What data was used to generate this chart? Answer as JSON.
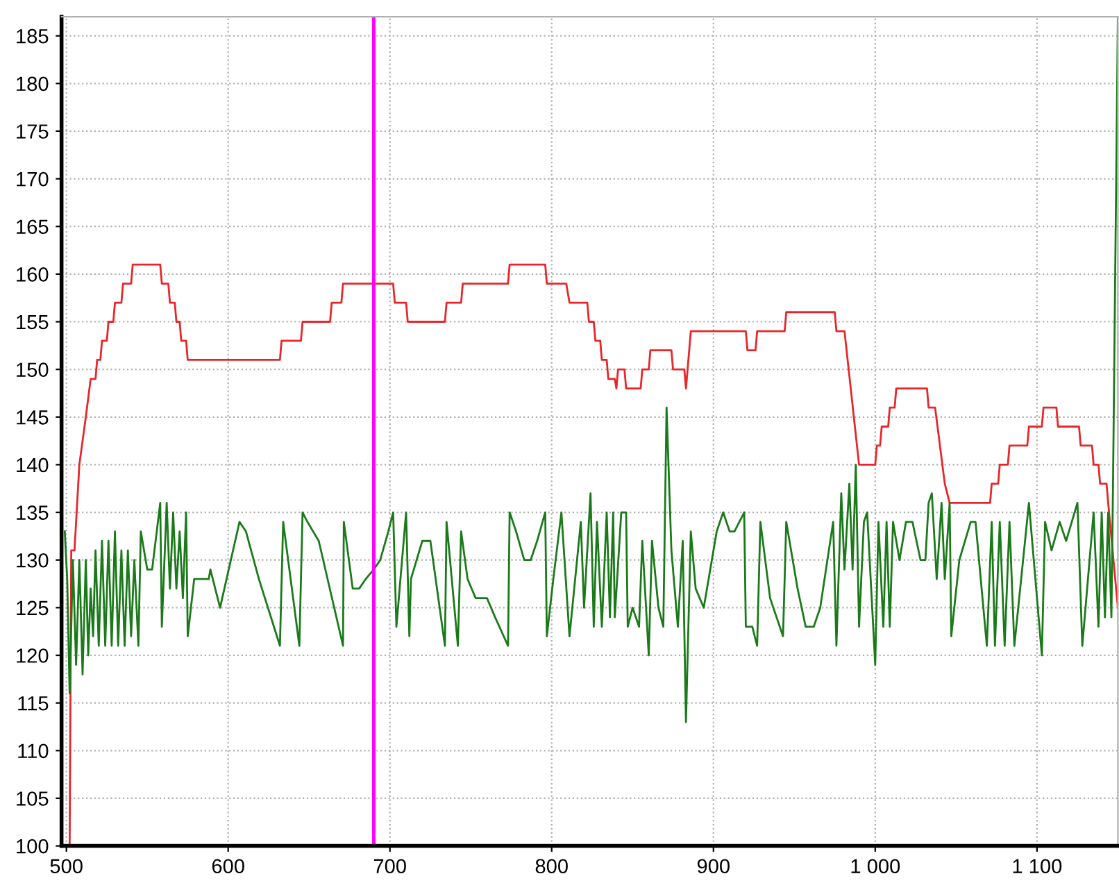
{
  "chart_data": {
    "type": "line",
    "xlim": [
      497,
      1150
    ],
    "ylim": [
      100,
      187
    ],
    "xticks": [
      500,
      600,
      700,
      800,
      900,
      {
        "value": 1000,
        "label": "1 000"
      },
      {
        "value": 1100,
        "label": "1 100"
      }
    ],
    "yticks": [
      100,
      105,
      110,
      115,
      120,
      125,
      130,
      135,
      140,
      145,
      150,
      155,
      160,
      165,
      170,
      175,
      180,
      185
    ],
    "grid": true,
    "line_style": "solid",
    "marker": "none",
    "ref_lines": [
      {
        "axis": "x",
        "value": 690,
        "color": "#ff00ff"
      }
    ],
    "series": [
      {
        "color": "#e8262a",
        "x": [
          502,
          503,
          505,
          508,
          512,
          515,
          518,
          519,
          521,
          522,
          525,
          526,
          529,
          530,
          534,
          535,
          540,
          541,
          558,
          559,
          563,
          564,
          567,
          568,
          570,
          571,
          574,
          575,
          632,
          633,
          645,
          646,
          663,
          664,
          670,
          671,
          702,
          703,
          710,
          711,
          734,
          735,
          744,
          745,
          773,
          774,
          796,
          797,
          809,
          811,
          822,
          823,
          826,
          827,
          830,
          831,
          834,
          835,
          839,
          840,
          841,
          845,
          846,
          855,
          856,
          860,
          861,
          874,
          875,
          882,
          883,
          885,
          886,
          920,
          921,
          926,
          927,
          944,
          945,
          975,
          976,
          981,
          990,
          1000,
          1001,
          1003,
          1004,
          1008,
          1009,
          1012,
          1013,
          1032,
          1033,
          1037,
          1043,
          1046,
          1071,
          1072,
          1076,
          1077,
          1082,
          1083,
          1094,
          1095,
          1103,
          1104,
          1112,
          1113,
          1126,
          1127,
          1134,
          1135,
          1138,
          1139,
          1143,
          1144,
          1150
        ],
        "values": [
          100,
          131,
          131,
          140,
          145,
          149,
          149,
          151,
          151,
          153,
          153,
          155,
          155,
          157,
          157,
          159,
          159,
          161,
          161,
          159,
          159,
          157,
          157,
          155,
          155,
          153,
          153,
          151,
          151,
          153,
          153,
          155,
          155,
          157,
          157,
          159,
          159,
          157,
          157,
          155,
          155,
          157,
          157,
          159,
          159,
          161,
          161,
          159,
          159,
          157,
          157,
          155,
          155,
          153,
          153,
          151,
          151,
          149,
          149,
          148,
          150,
          150,
          148,
          148,
          150,
          150,
          152,
          152,
          150,
          150,
          148,
          152,
          154,
          154,
          152,
          152,
          154,
          154,
          156,
          156,
          154,
          154,
          140,
          140,
          142,
          142,
          144,
          144,
          146,
          146,
          148,
          148,
          146,
          146,
          138,
          136,
          136,
          138,
          138,
          140,
          140,
          142,
          142,
          144,
          144,
          146,
          146,
          144,
          144,
          142,
          142,
          140,
          140,
          138,
          138,
          136,
          125
        ]
      },
      {
        "color": "#1a7a1a",
        "x": [
          499,
          500.5,
          502,
          504,
          506,
          508,
          510,
          512,
          513.5,
          515,
          516.5,
          518,
          520,
          522,
          524,
          526,
          528,
          530,
          532,
          534,
          536,
          538,
          540,
          542,
          544.5,
          546,
          550,
          553,
          558,
          559,
          562,
          564,
          566,
          568,
          570,
          572,
          574,
          575,
          579,
          588,
          589,
          595,
          599,
          607,
          611,
          619,
          632,
          634,
          644,
          646,
          649,
          656,
          671,
          671.5,
          677,
          681,
          685,
          690,
          694,
          699,
          702,
          704,
          710,
          712,
          713,
          720,
          725,
          734,
          735,
          742,
          744,
          748,
          753,
          760,
          765,
          773,
          774,
          778,
          783,
          787,
          791,
          796,
          797,
          801,
          806,
          811,
          818,
          820,
          824,
          826,
          828,
          831,
          834,
          836,
          838,
          839,
          843,
          846,
          847,
          850,
          854,
          856,
          860,
          862,
          866,
          869,
          871,
          874,
          878,
          881,
          883,
          886,
          889,
          894,
          902,
          906,
          910,
          913,
          919,
          920,
          924,
          927,
          929,
          935,
          943,
          945,
          952,
          957,
          962,
          966,
          974,
          976,
          979,
          981,
          984,
          986,
          988,
          990,
          993,
          995,
          1000,
          1002,
          1005,
          1007,
          1009,
          1011,
          1015,
          1019,
          1023,
          1028,
          1031,
          1033,
          1035,
          1038,
          1041,
          1043,
          1046,
          1047,
          1052,
          1059,
          1062,
          1069,
          1072,
          1074,
          1077,
          1080,
          1083,
          1086,
          1095,
          1103,
          1105,
          1109,
          1114,
          1118,
          1125,
          1128,
          1135,
          1138,
          1140,
          1142,
          1144,
          1146,
          1147,
          1150
        ],
        "values": [
          133,
          128,
          116,
          130,
          119,
          130,
          118,
          130,
          120,
          127,
          122,
          131,
          121,
          132,
          121,
          132,
          121,
          133,
          121,
          131,
          121,
          131,
          122,
          130,
          121,
          133,
          129,
          129,
          136,
          123,
          136,
          127,
          135,
          127,
          133,
          126,
          135,
          122,
          128,
          128,
          129,
          125,
          128,
          134,
          133,
          128,
          121,
          134,
          121,
          135,
          134,
          132,
          121,
          134,
          127,
          127,
          128,
          129,
          130,
          133,
          135,
          123,
          135,
          122,
          128,
          132,
          132,
          121,
          134,
          121,
          133,
          128,
          126,
          126,
          124,
          121,
          135,
          133,
          130,
          130,
          132,
          135,
          122,
          128,
          135,
          122,
          134,
          125,
          137,
          123,
          134,
          123,
          135,
          124,
          135,
          124,
          135,
          135,
          123,
          125,
          123,
          132,
          120,
          132,
          125,
          123,
          146,
          131,
          123,
          132,
          113,
          133,
          127,
          125,
          133,
          135,
          133,
          133,
          135,
          123,
          123,
          121,
          134,
          126,
          122,
          134,
          127,
          123,
          123,
          125,
          134,
          121,
          137,
          129,
          138,
          129,
          140,
          123,
          134,
          135,
          119,
          134,
          123,
          134,
          123,
          134,
          130,
          134,
          134,
          130,
          130,
          136,
          137,
          128,
          136,
          128,
          136,
          122,
          130,
          134,
          134,
          121,
          134,
          121,
          134,
          121,
          134,
          121,
          136,
          120,
          134,
          131,
          134,
          132,
          136,
          121,
          135,
          123,
          135,
          124,
          135,
          124,
          138,
          187
        ]
      }
    ]
  }
}
